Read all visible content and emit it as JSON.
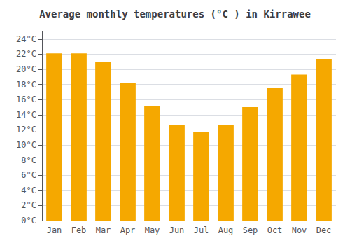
{
  "chart_data": {
    "type": "bar",
    "title": "Average monthly temperatures (°C ) in Kirrawee",
    "categories": [
      "Jan",
      "Feb",
      "Mar",
      "Apr",
      "May",
      "Jun",
      "Jul",
      "Aug",
      "Sep",
      "Oct",
      "Nov",
      "Dec"
    ],
    "values": [
      22.1,
      22.1,
      21.0,
      18.2,
      15.1,
      12.6,
      11.7,
      12.6,
      15.0,
      17.5,
      19.3,
      21.3
    ],
    "color": "#F5A800",
    "ylim": [
      0,
      25
    ],
    "yticks": [
      {
        "value": 0,
        "label": "0°C"
      },
      {
        "value": 2,
        "label": "2°C"
      },
      {
        "value": 4,
        "label": "4°C"
      },
      {
        "value": 6,
        "label": "6°C"
      },
      {
        "value": 8,
        "label": "8°C"
      },
      {
        "value": 10,
        "label": "10°C"
      },
      {
        "value": 12,
        "label": "12°C"
      },
      {
        "value": 14,
        "label": "14°C"
      },
      {
        "value": 16,
        "label": "16°C"
      },
      {
        "value": 18,
        "label": "18°C"
      },
      {
        "value": 20,
        "label": "20°C"
      },
      {
        "value": 22,
        "label": "22°C"
      },
      {
        "value": 24,
        "label": "24°C"
      }
    ],
    "grid": true
  }
}
